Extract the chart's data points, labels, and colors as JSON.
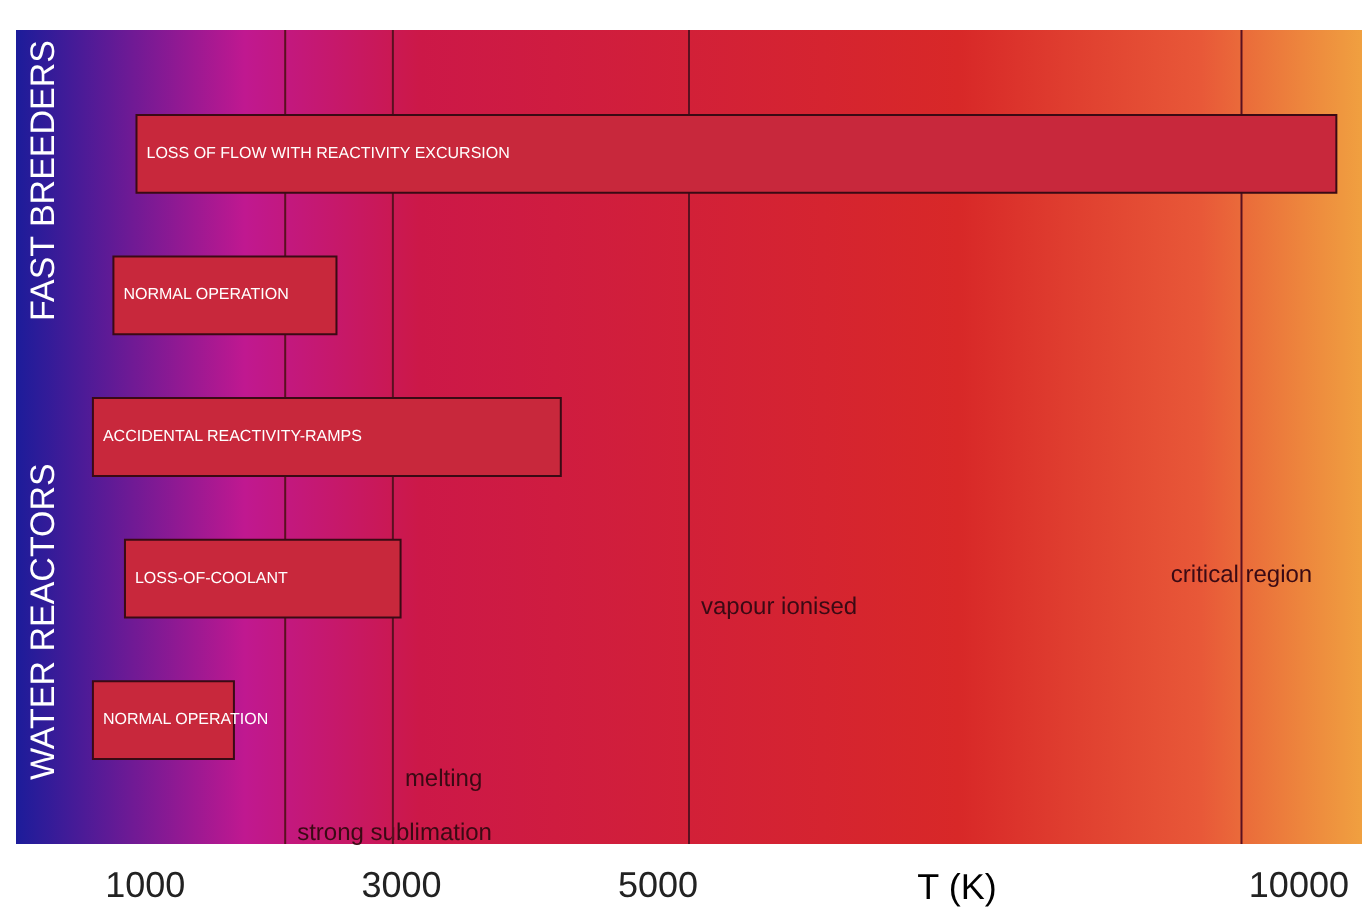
{
  "chart_data": {
    "type": "bar",
    "orientation": "horizontal",
    "categories": [
      "LOSS OF FLOW WITH REACTIVITY EXCURSION",
      "NORMAL OPERATION",
      "ACCIDENTAL REACTIVITY-RAMPS",
      "LOSS-OF-COOLANT",
      "NORMAL OPERATION"
    ],
    "base": [
      940,
      760,
      600,
      850,
      600
    ],
    "values": [
      9360,
      1740,
      3650,
      2150,
      1100
    ],
    "colors": [
      "#c8283c",
      "#c8283c",
      "#c8283c",
      "#c8283c",
      "#c8283c"
    ],
    "xlabel": "T (K)",
    "xlim": [
      0,
      10500
    ],
    "xticks": [
      1000,
      3000,
      5000,
      10000
    ],
    "ref_lines": [
      {
        "axis": "x",
        "value": 2100,
        "label": "strong sublimation",
        "color": "#5a1020"
      },
      {
        "axis": "x",
        "value": 2940,
        "label": "melting",
        "color": "#5a1020"
      },
      {
        "axis": "x",
        "value": 5250,
        "label": "vapour ionised",
        "color": "#5a1020"
      },
      {
        "axis": "x",
        "value": 9560,
        "label": "critical region",
        "color": "#5a1020"
      }
    ],
    "annotations": [
      "WATER REACTORS",
      "FAST BREEDERS"
    ],
    "tick_labels": "x",
    "grid": false
  }
}
